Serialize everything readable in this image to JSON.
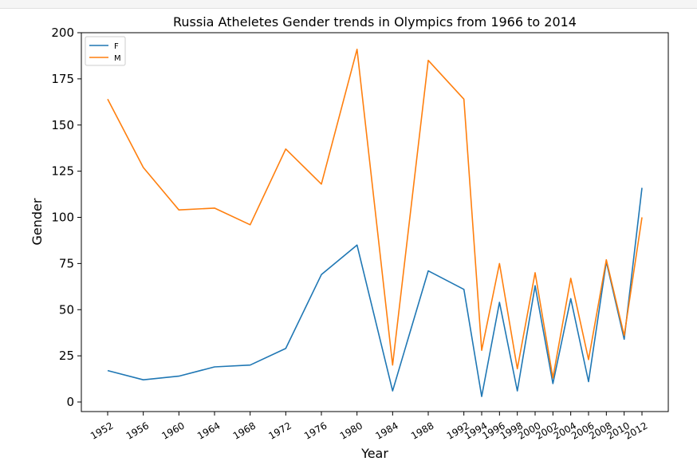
{
  "chart_data": {
    "type": "line",
    "title": "Russia Atheletes Gender trends in Olympics from 1966 to 2014",
    "xlabel": "Year",
    "ylabel": "Gender",
    "ylim": [
      0,
      200
    ],
    "yticks": [
      "0",
      "25",
      "50",
      "75",
      "100",
      "125",
      "150",
      "175",
      "200"
    ],
    "categories": [
      "1952",
      "1956",
      "1960",
      "1964",
      "1968",
      "1972",
      "1976",
      "1980",
      "1984",
      "1988",
      "1992",
      "1994",
      "1996",
      "1998",
      "2000",
      "2002",
      "2004",
      "2006",
      "2008",
      "2010",
      "2012"
    ],
    "grid": false,
    "legend_position": "top-left",
    "series": [
      {
        "name": "F",
        "color": "#1f77b4",
        "values": [
          17,
          12,
          14,
          19,
          20,
          29,
          69,
          85,
          6,
          71,
          61,
          3,
          54,
          6,
          63,
          10,
          56,
          11,
          76,
          34,
          116
        ]
      },
      {
        "name": "M",
        "color": "#ff7f0e",
        "values": [
          164,
          127,
          104,
          105,
          96,
          137,
          118,
          191,
          20,
          185,
          164,
          28,
          75,
          18,
          70,
          13,
          67,
          23,
          77,
          36,
          100
        ]
      }
    ]
  }
}
